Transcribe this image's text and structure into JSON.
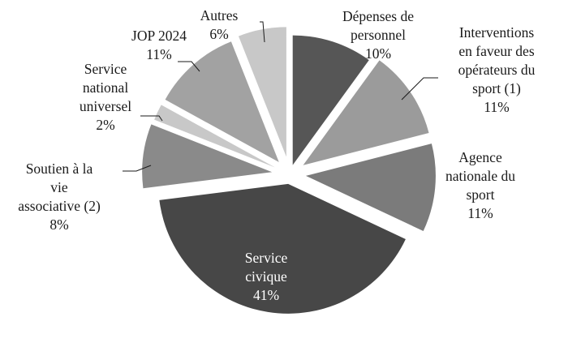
{
  "chart_data": {
    "type": "pie",
    "title": "",
    "slices": [
      {
        "label": [
          "Dépenses de",
          "personnel"
        ],
        "pct_text": "10%",
        "value": 10,
        "color": "#565656"
      },
      {
        "label": [
          "Interventions",
          "en faveur des",
          "opérateurs du",
          "sport (1)"
        ],
        "pct_text": "11%",
        "value": 11,
        "color": "#9b9b9b"
      },
      {
        "label": [
          "Agence",
          "nationale du",
          "sport"
        ],
        "pct_text": "11%",
        "value": 11,
        "color": "#7b7b7b"
      },
      {
        "label": [
          "Service",
          "civique"
        ],
        "pct_text": "41%",
        "value": 41,
        "color": "#474747"
      },
      {
        "label": [
          "Soutien à la",
          "vie",
          "associative (2)"
        ],
        "pct_text": "8%",
        "value": 8,
        "color": "#8a8a8a"
      },
      {
        "label": [
          "Service",
          "national",
          "universel"
        ],
        "pct_text": "2%",
        "value": 2,
        "color": "#c8c8c8"
      },
      {
        "label": [
          "JOP 2024"
        ],
        "pct_text": "11%",
        "value": 11,
        "color": "#a2a2a2"
      },
      {
        "label": [
          "Autres"
        ],
        "pct_text": "6%",
        "value": 6,
        "color": "#c8c8c8"
      }
    ]
  }
}
